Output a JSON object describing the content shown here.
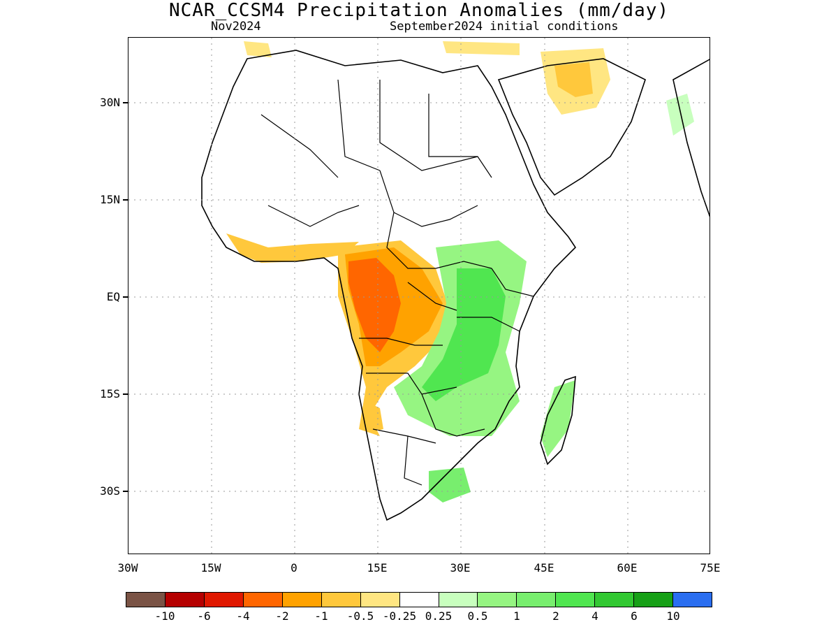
{
  "title": "NCAR_CCSM4 Precipitation Anomalies (mm/day)",
  "subtitle_left": "Nov2024",
  "subtitle_right": "September2024 initial conditions",
  "map": {
    "region": "Africa",
    "projection": "lat-lon",
    "lon_range": [
      -30,
      75
    ],
    "lat_range": [
      -43,
      40
    ],
    "grid": "dotted",
    "lat_ticks": [
      {
        "value": 30,
        "label": "30N"
      },
      {
        "value": 15,
        "label": "15N"
      },
      {
        "value": 0,
        "label": "EQ"
      },
      {
        "value": -15,
        "label": "15S"
      },
      {
        "value": -30,
        "label": "30S"
      }
    ],
    "lon_ticks": [
      {
        "value": -30,
        "label": "30W"
      },
      {
        "value": -15,
        "label": "15W"
      },
      {
        "value": 0,
        "label": "0"
      },
      {
        "value": 15,
        "label": "15E"
      },
      {
        "value": 30,
        "label": "30E"
      },
      {
        "value": 45,
        "label": "45E"
      },
      {
        "value": 60,
        "label": "60E"
      },
      {
        "value": 75,
        "label": "75E"
      }
    ]
  },
  "colorbar": {
    "colors": [
      "#7a5345",
      "#b50000",
      "#e01800",
      "#ff6600",
      "#ffa200",
      "#ffc83c",
      "#ffe682",
      "#ffffff",
      "#c8ffbe",
      "#96f582",
      "#78ee6e",
      "#50e650",
      "#32c832",
      "#17a017",
      "#2a6ef0"
    ],
    "labels": [
      "-10",
      "-6",
      "-4",
      "-2",
      "-1",
      "-0.5",
      "-0.25",
      "0.25",
      "0.5",
      "1",
      "2",
      "4",
      "6",
      "10"
    ]
  }
}
